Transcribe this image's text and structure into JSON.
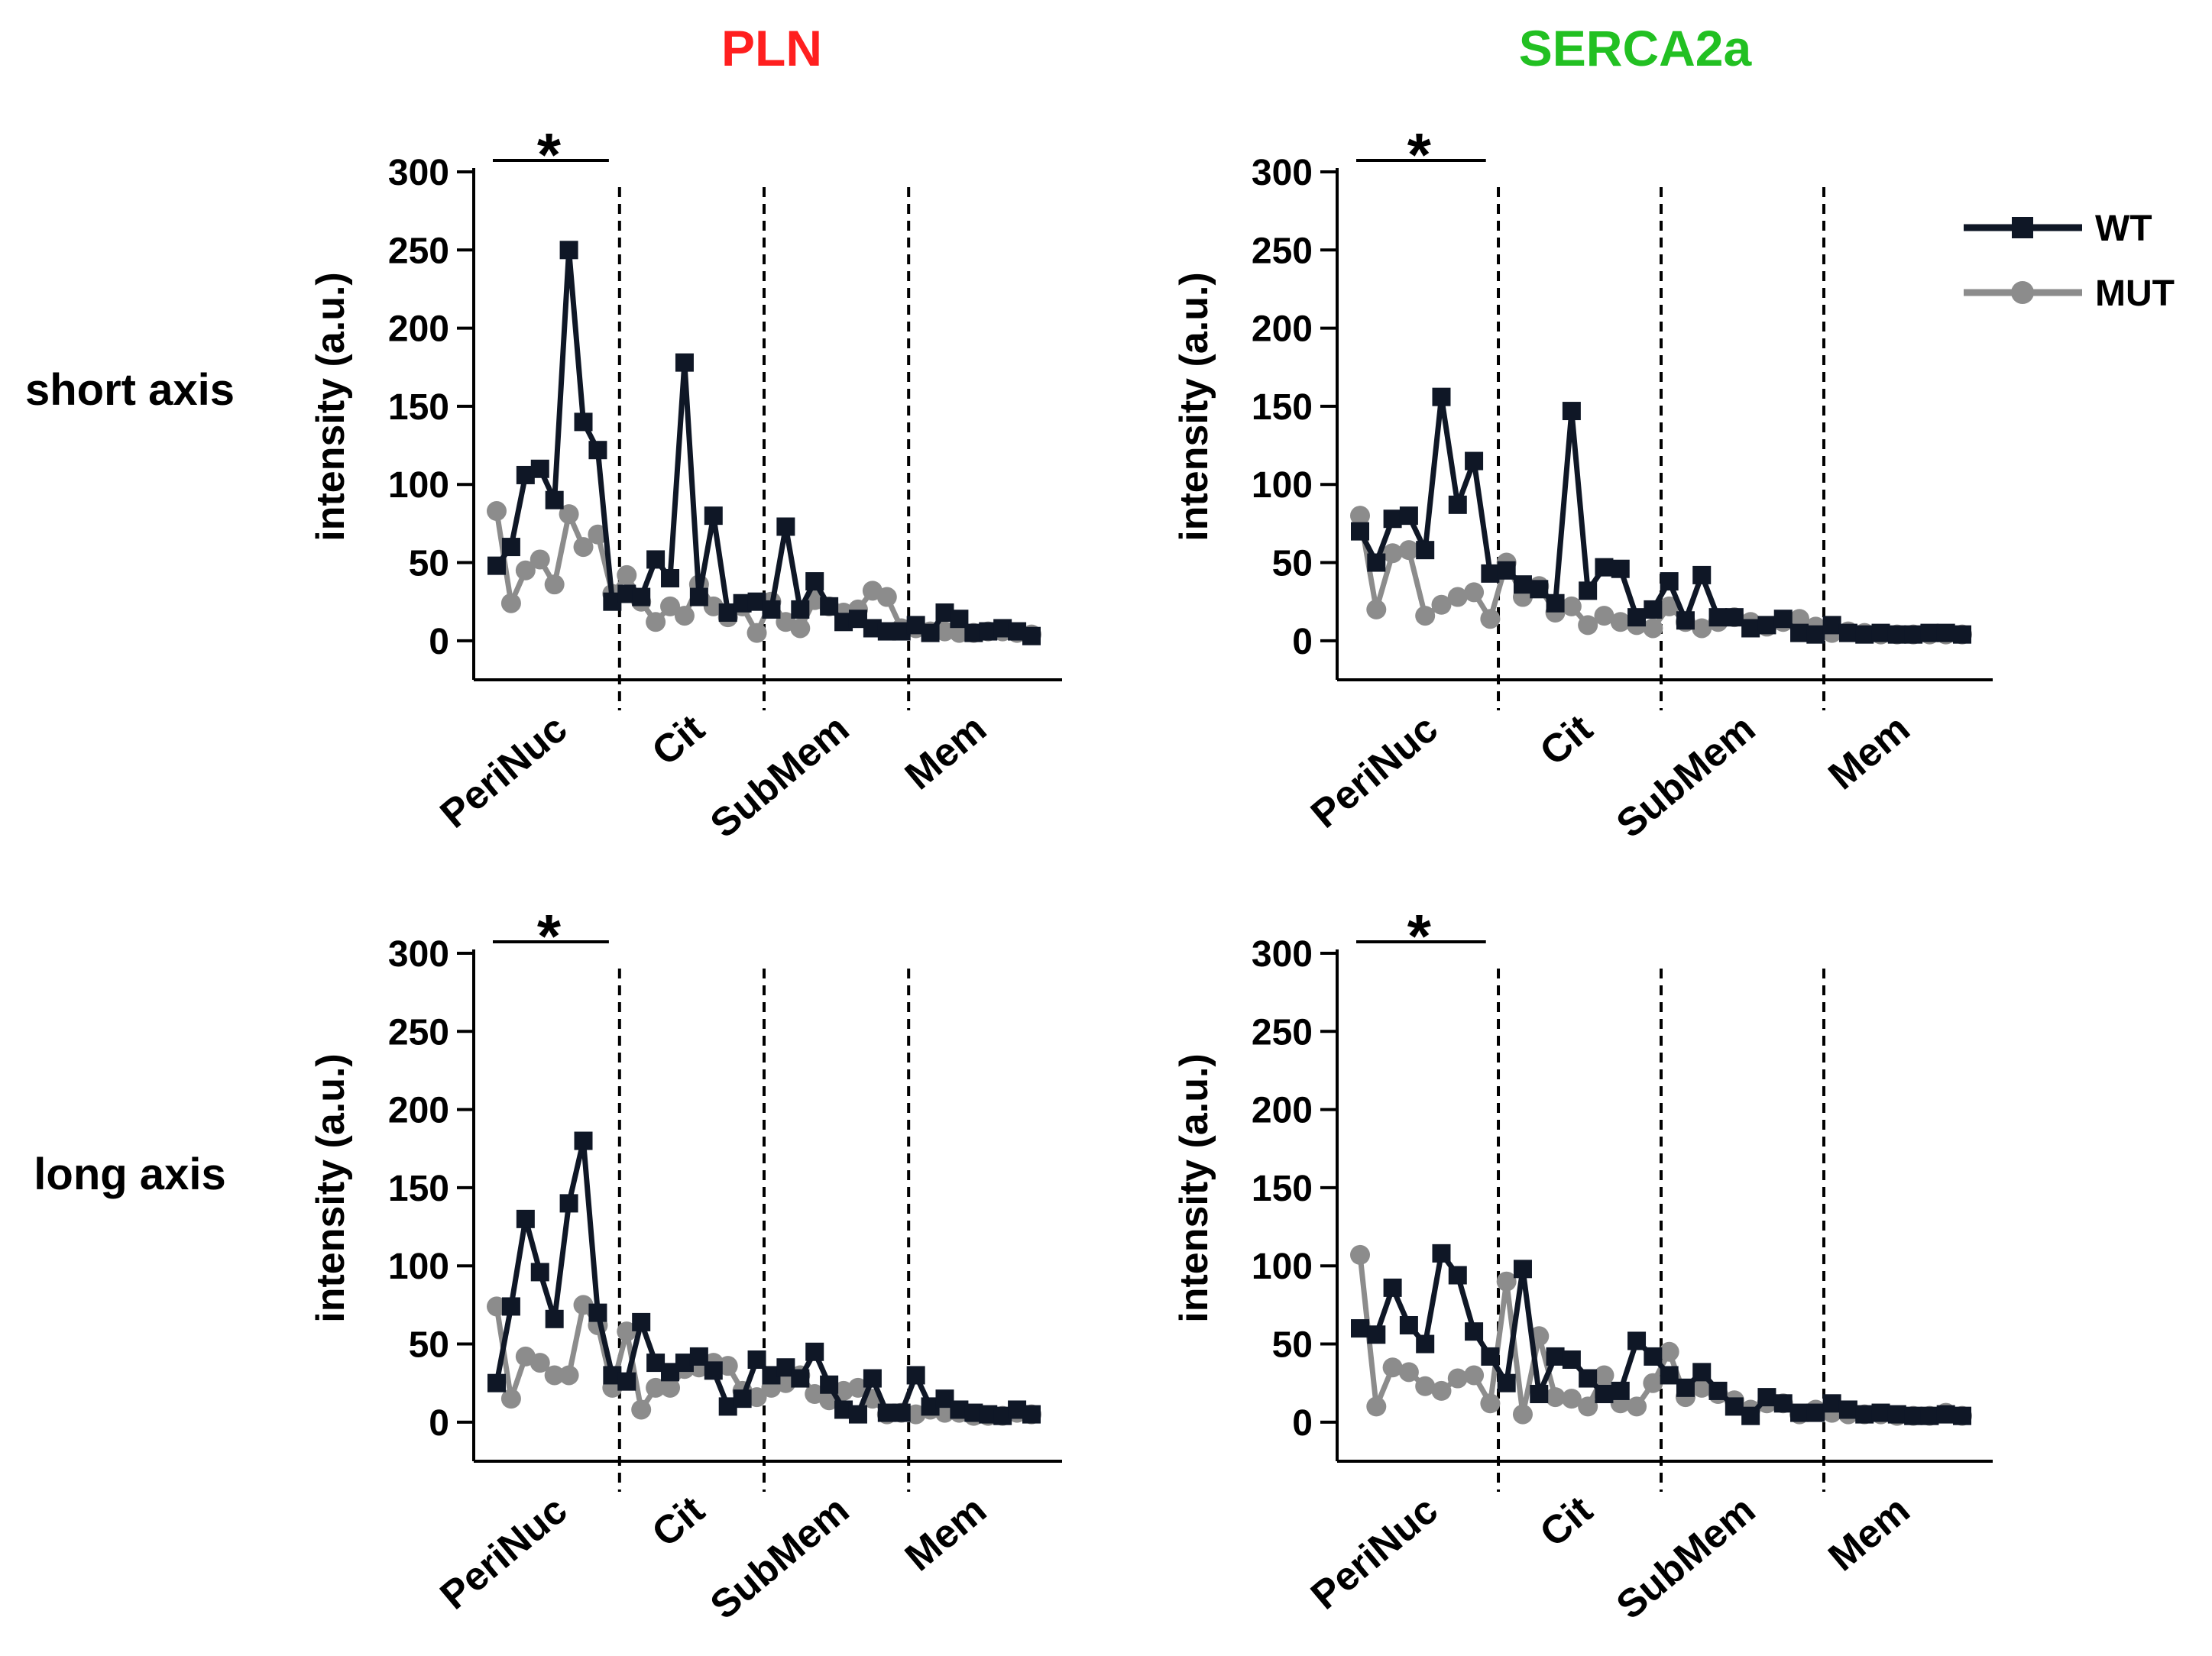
{
  "figure": {
    "columns": [
      {
        "title": "PLN",
        "color": "#ff1f1f"
      },
      {
        "title": "SERCA2a",
        "color": "#22c022"
      }
    ],
    "rows": [
      {
        "label": "short axis"
      },
      {
        "label": "long axis"
      }
    ],
    "legend": [
      {
        "label": "WT",
        "color": "#0f1726",
        "marker": "square"
      },
      {
        "label": "MUT",
        "color": "#8c8c8c",
        "marker": "circle"
      }
    ],
    "significance_mark": "*"
  },
  "chart_data": [
    {
      "type": "line",
      "title": "PLN",
      "row": "short axis",
      "ylabel": "intensity (a.u.)",
      "xlabel": "",
      "ylim": [
        -25,
        300
      ],
      "yticks": [
        0,
        50,
        100,
        150,
        200,
        250,
        300
      ],
      "regions": [
        "PeriNuc",
        "Cit",
        "SubMem",
        "Mem"
      ],
      "region_boundaries": [
        9.5,
        19.5,
        29.5
      ],
      "significance": {
        "label": "*",
        "x_start": 0,
        "x_end": 8.5
      },
      "series": [
        {
          "name": "WT",
          "color": "#0f1726",
          "marker": "square",
          "x": [
            1,
            2,
            3,
            4,
            5,
            6,
            7,
            8,
            9,
            10,
            11,
            12,
            13,
            14,
            15,
            16,
            17,
            18,
            19,
            20,
            21,
            22,
            23,
            24,
            25,
            26,
            27,
            28,
            29,
            30,
            31,
            32,
            33,
            34,
            35,
            36,
            37,
            38
          ],
          "values": [
            48,
            60,
            106,
            110,
            90,
            250,
            140,
            122,
            25,
            30,
            28,
            52,
            40,
            178,
            28,
            80,
            18,
            24,
            25,
            20,
            73,
            20,
            38,
            22,
            12,
            14,
            8,
            6,
            6,
            10,
            5,
            18,
            14,
            5,
            6,
            8,
            6,
            3
          ]
        },
        {
          "name": "MUT",
          "color": "#8c8c8c",
          "marker": "circle",
          "x": [
            1,
            2,
            3,
            4,
            5,
            6,
            7,
            8,
            9,
            10,
            11,
            12,
            13,
            14,
            15,
            16,
            17,
            18,
            19,
            20,
            21,
            22,
            23,
            24,
            25,
            26,
            27,
            28,
            29,
            30,
            31,
            32,
            33,
            34,
            35,
            36,
            37,
            38
          ],
          "values": [
            83,
            24,
            45,
            52,
            36,
            81,
            60,
            68,
            30,
            42,
            25,
            12,
            22,
            16,
            36,
            22,
            15,
            22,
            5,
            25,
            12,
            8,
            26,
            22,
            18,
            20,
            32,
            28,
            8,
            8,
            6,
            6,
            5,
            5,
            6,
            6,
            5,
            4
          ]
        }
      ]
    },
    {
      "type": "line",
      "title": "SERCA2a",
      "row": "short axis",
      "ylabel": "intensity (a.u.)",
      "xlabel": "",
      "ylim": [
        -25,
        300
      ],
      "yticks": [
        0,
        50,
        100,
        150,
        200,
        250,
        300
      ],
      "regions": [
        "PeriNuc",
        "Cit",
        "SubMem",
        "Mem"
      ],
      "region_boundaries": [
        9.5,
        19.5,
        29.5
      ],
      "significance": {
        "label": "*",
        "x_start": 0,
        "x_end": 8.5
      },
      "series": [
        {
          "name": "WT",
          "color": "#0f1726",
          "marker": "square",
          "x": [
            1,
            2,
            3,
            4,
            5,
            6,
            7,
            8,
            9,
            10,
            11,
            12,
            13,
            14,
            15,
            16,
            17,
            18,
            19,
            20,
            21,
            22,
            23,
            24,
            25,
            26,
            27,
            28,
            29,
            30,
            31,
            32,
            33,
            34,
            35,
            36,
            37,
            38
          ],
          "values": [
            70,
            50,
            78,
            80,
            58,
            156,
            87,
            115,
            43,
            45,
            36,
            33,
            24,
            147,
            32,
            47,
            46,
            15,
            20,
            38,
            13,
            42,
            15,
            15,
            8,
            10,
            14,
            5,
            4,
            10,
            5,
            4,
            5,
            4,
            4,
            5,
            5,
            4
          ]
        },
        {
          "name": "MUT",
          "color": "#8c8c8c",
          "marker": "circle",
          "x": [
            1,
            2,
            3,
            4,
            5,
            6,
            7,
            8,
            9,
            10,
            11,
            12,
            13,
            14,
            15,
            16,
            17,
            18,
            19,
            20,
            21,
            22,
            23,
            24,
            25,
            26,
            27,
            28,
            29,
            30,
            31,
            32,
            33,
            34,
            35,
            36,
            37,
            38
          ],
          "values": [
            80,
            20,
            56,
            58,
            16,
            23,
            28,
            31,
            14,
            50,
            28,
            35,
            18,
            22,
            10,
            16,
            12,
            10,
            8,
            22,
            12,
            8,
            12,
            15,
            12,
            9,
            12,
            14,
            9,
            5,
            6,
            5,
            4,
            4,
            4,
            4,
            4,
            4
          ]
        }
      ]
    },
    {
      "type": "line",
      "title": "PLN",
      "row": "long axis",
      "ylabel": "intensity (a.u.)",
      "xlabel": "",
      "ylim": [
        -25,
        300
      ],
      "yticks": [
        0,
        50,
        100,
        150,
        200,
        250,
        300
      ],
      "regions": [
        "PeriNuc",
        "Cit",
        "SubMem",
        "Mem"
      ],
      "region_boundaries": [
        9.5,
        19.5,
        29.5
      ],
      "significance": {
        "label": "*",
        "x_start": 0,
        "x_end": 8.5
      },
      "series": [
        {
          "name": "WT",
          "color": "#0f1726",
          "marker": "square",
          "x": [
            1,
            2,
            3,
            4,
            5,
            6,
            7,
            8,
            9,
            10,
            11,
            12,
            13,
            14,
            15,
            16,
            17,
            18,
            19,
            20,
            21,
            22,
            23,
            24,
            25,
            26,
            27,
            28,
            29,
            30,
            31,
            32,
            33,
            34,
            35,
            36,
            37,
            38
          ],
          "values": [
            25,
            74,
            130,
            96,
            66,
            140,
            180,
            70,
            30,
            26,
            64,
            38,
            32,
            38,
            42,
            33,
            10,
            15,
            40,
            30,
            35,
            28,
            45,
            24,
            8,
            5,
            28,
            6,
            6,
            30,
            10,
            15,
            8,
            6,
            5,
            4,
            8,
            5
          ]
        },
        {
          "name": "MUT",
          "color": "#8c8c8c",
          "marker": "circle",
          "x": [
            1,
            2,
            3,
            4,
            5,
            6,
            7,
            8,
            9,
            10,
            11,
            12,
            13,
            14,
            15,
            16,
            17,
            18,
            19,
            20,
            21,
            22,
            23,
            24,
            25,
            26,
            27,
            28,
            29,
            30,
            31,
            32,
            33,
            34,
            35,
            36,
            37,
            38
          ],
          "values": [
            74,
            15,
            42,
            38,
            30,
            30,
            75,
            62,
            22,
            58,
            8,
            22,
            22,
            34,
            35,
            38,
            36,
            20,
            16,
            22,
            25,
            30,
            18,
            14,
            20,
            22,
            15,
            5,
            6,
            5,
            8,
            6,
            6,
            4,
            4,
            4,
            6,
            5
          ]
        }
      ]
    },
    {
      "type": "line",
      "title": "SERCA2a",
      "row": "long axis",
      "ylabel": "intensity (a.u.)",
      "xlabel": "",
      "ylim": [
        -25,
        300
      ],
      "yticks": [
        0,
        50,
        100,
        150,
        200,
        250,
        300
      ],
      "regions": [
        "PeriNuc",
        "Cit",
        "SubMem",
        "Mem"
      ],
      "region_boundaries": [
        9.5,
        19.5,
        29.5
      ],
      "significance": {
        "label": "*",
        "x_start": 0,
        "x_end": 8.5
      },
      "series": [
        {
          "name": "WT",
          "color": "#0f1726",
          "marker": "square",
          "x": [
            1,
            2,
            3,
            4,
            5,
            6,
            7,
            8,
            9,
            10,
            11,
            12,
            13,
            14,
            15,
            16,
            17,
            18,
            19,
            20,
            21,
            22,
            23,
            24,
            25,
            26,
            27,
            28,
            29,
            30,
            31,
            32,
            33,
            34,
            35,
            36,
            37,
            38
          ],
          "values": [
            60,
            56,
            86,
            62,
            50,
            108,
            94,
            58,
            42,
            25,
            98,
            18,
            42,
            40,
            28,
            18,
            20,
            52,
            42,
            30,
            22,
            32,
            20,
            10,
            4,
            16,
            12,
            6,
            6,
            12,
            8,
            5,
            6,
            5,
            4,
            4,
            5,
            4
          ]
        },
        {
          "name": "MUT",
          "color": "#8c8c8c",
          "marker": "circle",
          "x": [
            1,
            2,
            3,
            4,
            5,
            6,
            7,
            8,
            9,
            10,
            11,
            12,
            13,
            14,
            15,
            16,
            17,
            18,
            19,
            20,
            21,
            22,
            23,
            24,
            25,
            26,
            27,
            28,
            29,
            30,
            31,
            32,
            33,
            34,
            35,
            36,
            37,
            38
          ],
          "values": [
            107,
            10,
            35,
            32,
            23,
            20,
            28,
            30,
            12,
            90,
            5,
            55,
            16,
            15,
            10,
            30,
            12,
            10,
            25,
            45,
            16,
            22,
            18,
            14,
            8,
            12,
            12,
            5,
            8,
            6,
            5,
            5,
            5,
            4,
            4,
            4,
            6,
            4
          ]
        }
      ]
    }
  ]
}
